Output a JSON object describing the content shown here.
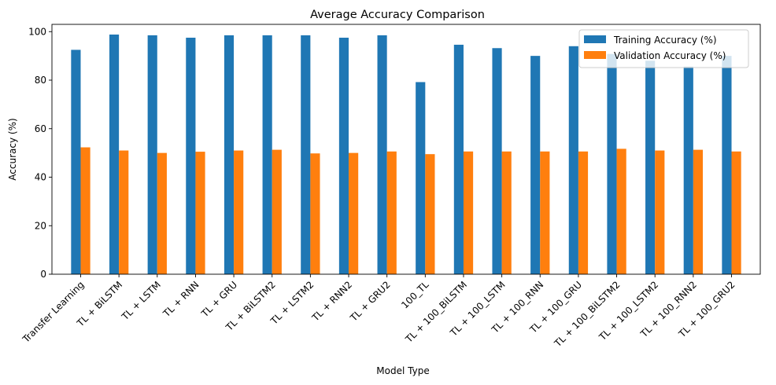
{
  "chart_data": {
    "type": "bar",
    "title": "Average Accuracy Comparison",
    "xlabel": "Model Type",
    "ylabel": "Accuracy (%)",
    "ylim": [
      0,
      103
    ],
    "yticks": [
      0,
      20,
      40,
      60,
      80,
      100
    ],
    "grid": false,
    "legend_position": "top-right",
    "categories": [
      "Transfer Learning",
      "TL + BiLSTM",
      "TL + LSTM",
      "TL + RNN",
      "TL + GRU",
      "TL + BiLSTM2",
      "TL + LSTM2",
      "TL + RNN2",
      "TL + GRU2",
      "100_TL",
      "TL + 100_BiLSTM",
      "TL + 100_LSTM",
      "TL + 100_RNN",
      "TL + 100_GRU",
      "TL + 100_BiLSTM2",
      "TL + 100_LSTM2",
      "TL + 100_RNN2",
      "TL + 100_GRU2"
    ],
    "series": [
      {
        "name": "Training Accuracy (%)",
        "color": "#1f77b4",
        "values": [
          92.5,
          98.8,
          98.5,
          97.5,
          98.5,
          98.5,
          98.5,
          97.5,
          98.5,
          79.2,
          94.6,
          93.2,
          90.0,
          94.0,
          90.8,
          88.0,
          85.6,
          90.0
        ]
      },
      {
        "name": "Validation Accuracy (%)",
        "color": "#ff7f0e",
        "values": [
          52.3,
          51.0,
          50.0,
          50.5,
          51.0,
          51.3,
          49.8,
          50.0,
          50.6,
          49.5,
          50.6,
          50.6,
          50.6,
          50.6,
          51.7,
          51.0,
          51.3,
          50.6
        ]
      }
    ]
  }
}
